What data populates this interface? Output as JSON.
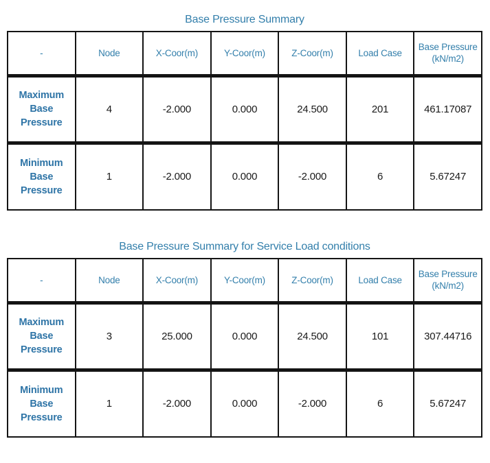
{
  "colors": {
    "accent": "#337fab",
    "row_label": "#2e74a6",
    "border": "#141414",
    "value_text": "#1a1a1a"
  },
  "tables": [
    {
      "title": "Base Pressure Summary",
      "headers": [
        "-",
        "Node",
        "X-Coor(m)",
        "Y-Coor(m)",
        "Z-Coor(m)",
        "Load Case",
        "Base Pressure\n(kN/m2)"
      ],
      "rows": [
        {
          "label": "Maximum\nBase\nPressure",
          "cells": [
            "4",
            "-2.000",
            "0.000",
            "24.500",
            "201",
            "461.17087"
          ]
        },
        {
          "label": "Minimum\nBase\nPressure",
          "cells": [
            "1",
            "-2.000",
            "0.000",
            "-2.000",
            "6",
            "5.67247"
          ]
        }
      ]
    },
    {
      "title": "Base Pressure Summary for Service Load conditions",
      "headers": [
        "-",
        "Node",
        "X-Coor(m)",
        "Y-Coor(m)",
        "Z-Coor(m)",
        "Load Case",
        "Base Pressure\n(kN/m2)"
      ],
      "rows": [
        {
          "label": "Maximum\nBase\nPressure",
          "cells": [
            "3",
            "25.000",
            "0.000",
            "24.500",
            "101",
            "307.44716"
          ]
        },
        {
          "label": "Minimum\nBase\nPressure",
          "cells": [
            "1",
            "-2.000",
            "0.000",
            "-2.000",
            "6",
            "5.67247"
          ]
        }
      ]
    }
  ]
}
